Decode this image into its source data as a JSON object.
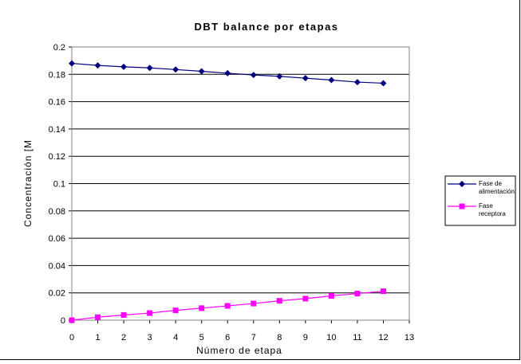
{
  "chart_data": {
    "type": "line",
    "title": "DBT balance por etapas",
    "xlabel": "Número de etapa",
    "ylabel": "Concentración [M",
    "xlim": [
      0,
      13
    ],
    "ylim": [
      0,
      0.2
    ],
    "x_ticks": [
      "0",
      "1",
      "2",
      "3",
      "4",
      "5",
      "6",
      "7",
      "8",
      "9",
      "10",
      "11",
      "12",
      "13"
    ],
    "y_ticks": [
      "0",
      "0.02",
      "0.04",
      "0.06",
      "0.08",
      "0.1",
      "0.12",
      "0.14",
      "0.16",
      "0.18",
      "0.2"
    ],
    "x": [
      0,
      1,
      2,
      3,
      4,
      5,
      6,
      7,
      8,
      9,
      10,
      11,
      12
    ],
    "grid": "horizontal",
    "legend_position": "right",
    "series": [
      {
        "name_lines": [
          "Fase de",
          "alimentación"
        ],
        "color": "#000080",
        "marker": "diamond",
        "values": [
          0.188,
          0.1865,
          0.1855,
          0.1847,
          0.1835,
          0.1822,
          0.1808,
          0.1795,
          0.1785,
          0.1772,
          0.1758,
          0.1743,
          0.1735
        ]
      },
      {
        "name_lines": [
          "Fase",
          "receptora"
        ],
        "color": "#ff00ff",
        "marker": "square",
        "values": [
          0.0,
          0.0022,
          0.0038,
          0.0052,
          0.0072,
          0.0088,
          0.0105,
          0.0122,
          0.0142,
          0.0158,
          0.0178,
          0.0195,
          0.0212
        ]
      }
    ]
  }
}
